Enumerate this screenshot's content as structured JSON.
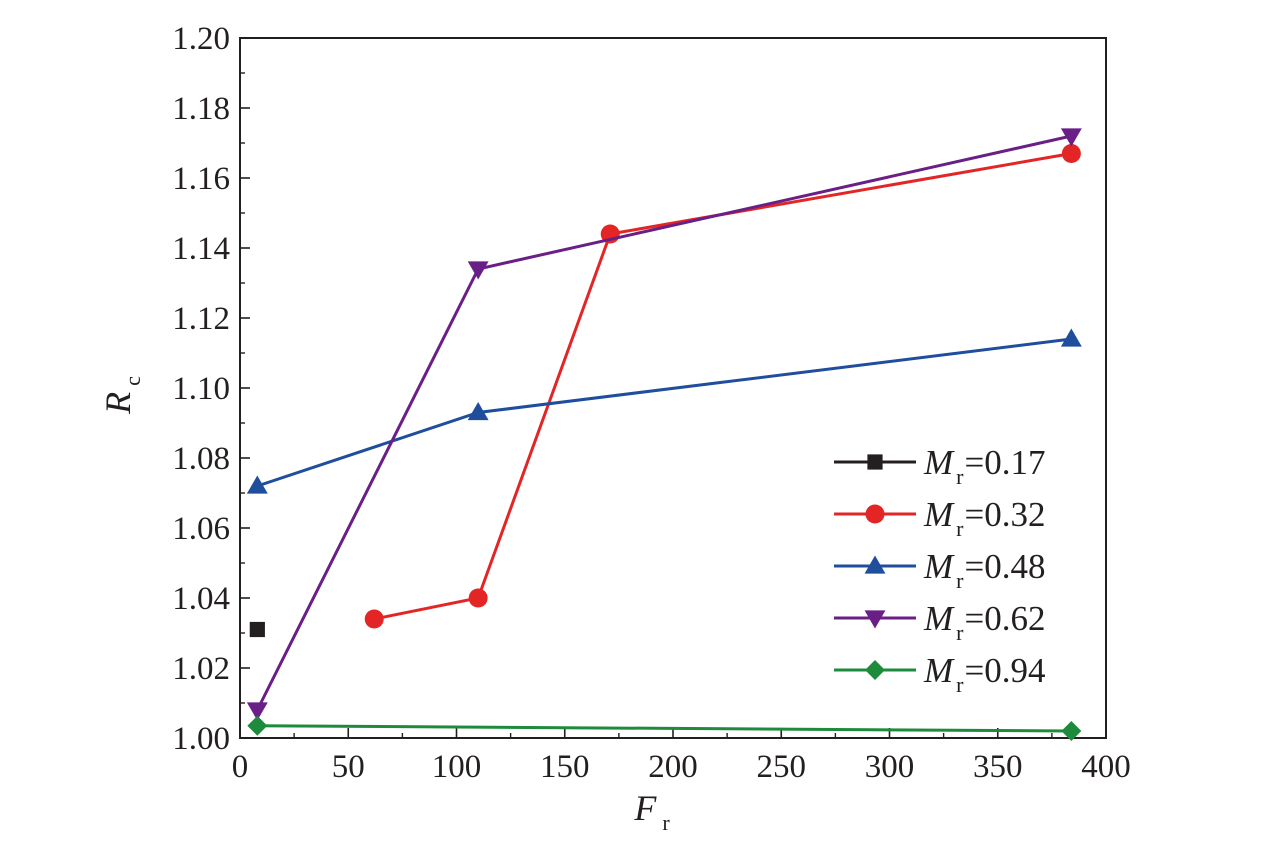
{
  "chart_data": {
    "type": "line",
    "xlabel": {
      "main": "F",
      "sub": "r"
    },
    "ylabel": {
      "main": "R",
      "sub": "c"
    },
    "xlim": [
      0,
      400
    ],
    "ylim": [
      1.0,
      1.2
    ],
    "xticks": [
      0,
      50,
      100,
      150,
      200,
      250,
      300,
      350,
      400
    ],
    "yticks": [
      1.0,
      1.02,
      1.04,
      1.06,
      1.08,
      1.1,
      1.12,
      1.14,
      1.16,
      1.18,
      1.2
    ],
    "xtick_labels": [
      "0",
      "50",
      "100",
      "150",
      "200",
      "250",
      "300",
      "350",
      "400"
    ],
    "ytick_labels": [
      "1.00",
      "1.02",
      "1.04",
      "1.06",
      "1.08",
      "1.10",
      "1.12",
      "1.14",
      "1.16",
      "1.18",
      "1.20"
    ],
    "grid": false,
    "legend_position": "lower-right",
    "series": [
      {
        "legend_prefix": "M",
        "legend_sub": "r",
        "legend_value": "=0.17",
        "color": "#231f20",
        "marker": "square",
        "points": [
          [
            8,
            1.031
          ]
        ]
      },
      {
        "legend_prefix": "M",
        "legend_sub": "r",
        "legend_value": "=0.32",
        "color": "#e42525",
        "marker": "circle",
        "points": [
          [
            62,
            1.034
          ],
          [
            110,
            1.04
          ],
          [
            171,
            1.144
          ],
          [
            384,
            1.167
          ]
        ]
      },
      {
        "legend_prefix": "M",
        "legend_sub": "r",
        "legend_value": "=0.48",
        "color": "#1f4e9c",
        "marker": "triangle-up",
        "points": [
          [
            8,
            1.072
          ],
          [
            110,
            1.093
          ],
          [
            384,
            1.114
          ]
        ]
      },
      {
        "legend_prefix": "M",
        "legend_sub": "r",
        "legend_value": "=0.62",
        "color": "#6a1f86",
        "marker": "triangle-down",
        "points": [
          [
            8,
            1.008
          ],
          [
            110,
            1.134
          ],
          [
            384,
            1.172
          ]
        ]
      },
      {
        "legend_prefix": "M",
        "legend_sub": "r",
        "legend_value": "=0.94",
        "color": "#1e8a3c",
        "marker": "diamond",
        "points": [
          [
            8,
            1.0035
          ],
          [
            384,
            1.002
          ]
        ]
      }
    ]
  }
}
